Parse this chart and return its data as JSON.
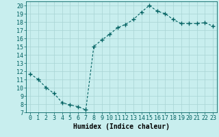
{
  "x": [
    0,
    1,
    2,
    3,
    4,
    5,
    6,
    7,
    8,
    9,
    10,
    11,
    12,
    13,
    14,
    15,
    16,
    17,
    18,
    19,
    20,
    21,
    22,
    23
  ],
  "y": [
    11.7,
    11.0,
    10.0,
    9.3,
    8.2,
    7.9,
    7.7,
    7.3,
    15.0,
    15.8,
    16.5,
    17.3,
    17.7,
    18.3,
    19.2,
    20.0,
    19.3,
    19.0,
    18.3,
    17.8,
    17.8,
    17.8,
    17.9,
    17.5
  ],
  "line_color": "#006060",
  "marker": "+",
  "marker_size": 4,
  "bg_color": "#c8eeee",
  "grid_color": "#a8d4d4",
  "xlabel": "Humidex (Indice chaleur)",
  "ylim": [
    7,
    20.5
  ],
  "xlim": [
    -0.5,
    23.5
  ],
  "yticks": [
    7,
    8,
    9,
    10,
    11,
    12,
    13,
    14,
    15,
    16,
    17,
    18,
    19,
    20
  ],
  "xticks": [
    0,
    1,
    2,
    3,
    4,
    5,
    6,
    7,
    8,
    9,
    10,
    11,
    12,
    13,
    14,
    15,
    16,
    17,
    18,
    19,
    20,
    21,
    22,
    23
  ],
  "font_size": 6,
  "label_font_size": 7
}
